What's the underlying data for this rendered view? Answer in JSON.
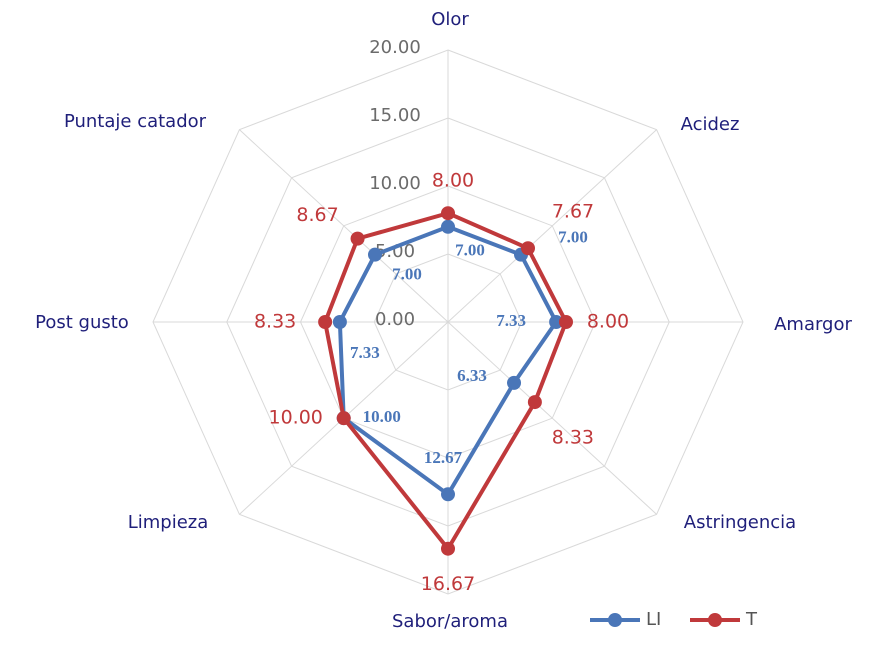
{
  "chart_data": {
    "type": "radar",
    "categories": [
      "Olor",
      "Acidez",
      "Amargor",
      "Astringencia",
      "Sabor/aroma",
      "Limpieza",
      "Post gusto",
      "Puntaje catador"
    ],
    "series": [
      {
        "name": "LI",
        "color": "#4a76b8",
        "values": [
          7,
          7,
          7.33,
          6.33,
          12.67,
          10,
          7.33,
          7
        ],
        "value_labels": [
          "7.00",
          "7.00",
          "7.33",
          "6.33",
          "12.67",
          "10.00",
          "7.33",
          "7.00"
        ]
      },
      {
        "name": "T",
        "color": "#c0393b",
        "values": [
          8,
          7.67,
          8,
          8.33,
          16.67,
          10,
          8.33,
          8.67
        ],
        "value_labels": [
          "8.00",
          "7.67",
          "8.00",
          "8.33",
          "16.67",
          "10.00",
          "8.33",
          "8.67"
        ]
      }
    ],
    "ylim": [
      0,
      20
    ],
    "yticks": [
      {
        "value": 0,
        "label": "0.00"
      },
      {
        "value": 5,
        "label": "5.00"
      },
      {
        "value": 10,
        "label": "10.00"
      },
      {
        "value": 15,
        "label": "15.00"
      },
      {
        "value": 20,
        "label": "20.00"
      }
    ],
    "grid": true,
    "legend": "bottom-right"
  }
}
